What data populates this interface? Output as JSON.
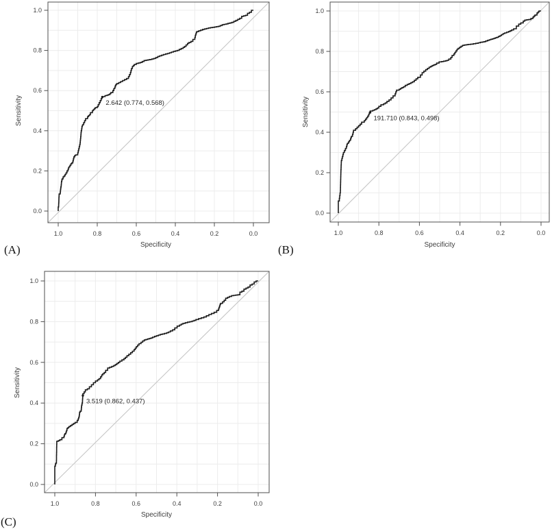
{
  "figure": {
    "background": "#ffffff",
    "colors": {
      "curve": "#1a1a1a",
      "diagonal": "#c6c6c6",
      "grid": "#ececec",
      "frame": "#4d4d4d",
      "tick": "#4d4d4d",
      "tick_label": "#3d3d3d",
      "axis_label": "#3d3d3d",
      "annotation": "#262626",
      "panel_letter": "#141414"
    }
  },
  "chart_data": [
    {
      "type": "line",
      "subtype": "roc_curve",
      "panel": "(A)",
      "xlabel": "Specificity",
      "ylabel": "Sensitivity",
      "x_axis": {
        "range": [
          1.0,
          0.0
        ],
        "reversed": true,
        "ticks": [
          "1.0",
          "0.8",
          "0.6",
          "0.4",
          "0.2",
          "0.0"
        ]
      },
      "y_axis": {
        "range": [
          0.0,
          1.0
        ],
        "ticks": [
          "0.0",
          "0.2",
          "0.4",
          "0.6",
          "0.8",
          "1.0"
        ]
      },
      "grid": {
        "on": true,
        "spacing": 0.1
      },
      "reference_line": {
        "type": "diagonal",
        "from": [
          1.0,
          0.0
        ],
        "to": [
          0.0,
          1.0
        ]
      },
      "best_threshold": {
        "label": "2.642 (0.774, 0.568)",
        "threshold": 2.642,
        "specificity": 0.774,
        "sensitivity": 0.568
      },
      "points": [
        [
          1.0,
          0.0
        ],
        [
          1.0,
          0.01
        ],
        [
          0.998,
          0.02
        ],
        [
          0.997,
          0.04
        ],
        [
          0.996,
          0.06
        ],
        [
          0.995,
          0.08
        ],
        [
          0.99,
          0.085
        ],
        [
          0.988,
          0.1
        ],
        [
          0.985,
          0.12
        ],
        [
          0.983,
          0.14
        ],
        [
          0.98,
          0.155
        ],
        [
          0.975,
          0.16
        ],
        [
          0.97,
          0.17
        ],
        [
          0.965,
          0.175
        ],
        [
          0.955,
          0.19
        ],
        [
          0.95,
          0.2
        ],
        [
          0.945,
          0.215
        ],
        [
          0.94,
          0.22
        ],
        [
          0.93,
          0.235
        ],
        [
          0.925,
          0.24
        ],
        [
          0.92,
          0.26
        ],
        [
          0.915,
          0.27
        ],
        [
          0.91,
          0.277
        ],
        [
          0.9,
          0.28
        ],
        [
          0.895,
          0.3
        ],
        [
          0.89,
          0.32
        ],
        [
          0.888,
          0.33
        ],
        [
          0.886,
          0.35
        ],
        [
          0.884,
          0.37
        ],
        [
          0.882,
          0.39
        ],
        [
          0.88,
          0.4
        ],
        [
          0.877,
          0.42
        ],
        [
          0.875,
          0.425
        ],
        [
          0.87,
          0.43
        ],
        [
          0.865,
          0.44
        ],
        [
          0.86,
          0.45
        ],
        [
          0.85,
          0.46
        ],
        [
          0.845,
          0.47
        ],
        [
          0.84,
          0.475
        ],
        [
          0.835,
          0.48
        ],
        [
          0.825,
          0.49
        ],
        [
          0.82,
          0.5
        ],
        [
          0.815,
          0.505
        ],
        [
          0.81,
          0.51
        ],
        [
          0.8,
          0.515
        ],
        [
          0.795,
          0.52
        ],
        [
          0.79,
          0.53
        ],
        [
          0.785,
          0.54
        ],
        [
          0.78,
          0.55
        ],
        [
          0.776,
          0.56
        ],
        [
          0.774,
          0.568
        ],
        [
          0.76,
          0.57
        ],
        [
          0.75,
          0.575
        ],
        [
          0.735,
          0.58
        ],
        [
          0.73,
          0.585
        ],
        [
          0.72,
          0.59
        ],
        [
          0.715,
          0.6
        ],
        [
          0.71,
          0.61
        ],
        [
          0.705,
          0.625
        ],
        [
          0.7,
          0.63
        ],
        [
          0.69,
          0.635
        ],
        [
          0.68,
          0.64
        ],
        [
          0.67,
          0.645
        ],
        [
          0.66,
          0.65
        ],
        [
          0.65,
          0.655
        ],
        [
          0.64,
          0.66
        ],
        [
          0.635,
          0.67
        ],
        [
          0.63,
          0.68
        ],
        [
          0.625,
          0.7
        ],
        [
          0.62,
          0.71
        ],
        [
          0.615,
          0.72
        ],
        [
          0.61,
          0.725
        ],
        [
          0.6,
          0.73
        ],
        [
          0.59,
          0.735
        ],
        [
          0.57,
          0.74
        ],
        [
          0.55,
          0.75
        ],
        [
          0.52,
          0.755
        ],
        [
          0.5,
          0.76
        ],
        [
          0.48,
          0.77
        ],
        [
          0.45,
          0.78
        ],
        [
          0.43,
          0.785
        ],
        [
          0.4,
          0.795
        ],
        [
          0.38,
          0.8
        ],
        [
          0.36,
          0.81
        ],
        [
          0.345,
          0.82
        ],
        [
          0.33,
          0.835
        ],
        [
          0.32,
          0.84
        ],
        [
          0.31,
          0.845
        ],
        [
          0.3,
          0.855
        ],
        [
          0.295,
          0.875
        ],
        [
          0.29,
          0.89
        ],
        [
          0.27,
          0.898
        ],
        [
          0.25,
          0.905
        ],
        [
          0.22,
          0.912
        ],
        [
          0.2,
          0.915
        ],
        [
          0.17,
          0.92
        ],
        [
          0.15,
          0.928
        ],
        [
          0.13,
          0.932
        ],
        [
          0.1,
          0.94
        ],
        [
          0.08,
          0.95
        ],
        [
          0.06,
          0.96
        ],
        [
          0.05,
          0.97
        ],
        [
          0.03,
          0.975
        ],
        [
          0.02,
          0.985
        ],
        [
          0.01,
          0.99
        ],
        [
          0.0,
          1.0
        ]
      ]
    },
    {
      "type": "line",
      "subtype": "roc_curve",
      "panel": "(B)",
      "xlabel": "Specificity",
      "ylabel": "Sensitivity",
      "x_axis": {
        "range": [
          1.0,
          0.0
        ],
        "reversed": true,
        "ticks": [
          "1.0",
          "0.8",
          "0.6",
          "0.4",
          "0.2",
          "0.0"
        ]
      },
      "y_axis": {
        "range": [
          0.0,
          1.0
        ],
        "ticks": [
          "0.0",
          "0.2",
          "0.4",
          "0.6",
          "0.8",
          "1.0"
        ]
      },
      "grid": {
        "on": true,
        "spacing": 0.1
      },
      "reference_line": {
        "type": "diagonal",
        "from": [
          1.0,
          0.0
        ],
        "to": [
          0.0,
          1.0
        ]
      },
      "best_threshold": {
        "label": "191.710 (0.843, 0.498)",
        "threshold": 191.71,
        "specificity": 0.843,
        "sensitivity": 0.498
      },
      "points": [
        [
          1.0,
          0.0
        ],
        [
          1.0,
          0.05
        ],
        [
          0.995,
          0.06
        ],
        [
          0.99,
          0.1
        ],
        [
          0.988,
          0.18
        ],
        [
          0.985,
          0.25
        ],
        [
          0.98,
          0.27
        ],
        [
          0.975,
          0.29
        ],
        [
          0.97,
          0.3
        ],
        [
          0.96,
          0.32
        ],
        [
          0.955,
          0.34
        ],
        [
          0.95,
          0.345
        ],
        [
          0.94,
          0.36
        ],
        [
          0.935,
          0.375
        ],
        [
          0.93,
          0.38
        ],
        [
          0.925,
          0.4
        ],
        [
          0.915,
          0.41
        ],
        [
          0.9,
          0.425
        ],
        [
          0.885,
          0.44
        ],
        [
          0.872,
          0.45
        ],
        [
          0.86,
          0.465
        ],
        [
          0.85,
          0.48
        ],
        [
          0.843,
          0.498
        ],
        [
          0.83,
          0.505
        ],
        [
          0.814,
          0.512
        ],
        [
          0.8,
          0.52
        ],
        [
          0.79,
          0.528
        ],
        [
          0.777,
          0.536
        ],
        [
          0.76,
          0.545
        ],
        [
          0.75,
          0.553
        ],
        [
          0.74,
          0.56
        ],
        [
          0.73,
          0.57
        ],
        [
          0.72,
          0.58
        ],
        [
          0.713,
          0.6
        ],
        [
          0.7,
          0.608
        ],
        [
          0.686,
          0.617
        ],
        [
          0.67,
          0.625
        ],
        [
          0.66,
          0.632
        ],
        [
          0.642,
          0.641
        ],
        [
          0.625,
          0.65
        ],
        [
          0.608,
          0.664
        ],
        [
          0.595,
          0.672
        ],
        [
          0.578,
          0.695
        ],
        [
          0.56,
          0.71
        ],
        [
          0.544,
          0.722
        ],
        [
          0.53,
          0.73
        ],
        [
          0.515,
          0.736
        ],
        [
          0.503,
          0.742
        ],
        [
          0.49,
          0.748
        ],
        [
          0.47,
          0.752
        ],
        [
          0.455,
          0.756
        ],
        [
          0.445,
          0.762
        ],
        [
          0.439,
          0.77
        ],
        [
          0.43,
          0.78
        ],
        [
          0.42,
          0.795
        ],
        [
          0.409,
          0.81
        ],
        [
          0.395,
          0.82
        ],
        [
          0.379,
          0.83
        ],
        [
          0.36,
          0.833
        ],
        [
          0.334,
          0.836
        ],
        [
          0.31,
          0.84
        ],
        [
          0.29,
          0.845
        ],
        [
          0.273,
          0.848
        ],
        [
          0.255,
          0.855
        ],
        [
          0.24,
          0.86
        ],
        [
          0.226,
          0.864
        ],
        [
          0.21,
          0.87
        ],
        [
          0.195,
          0.878
        ],
        [
          0.179,
          0.888
        ],
        [
          0.16,
          0.895
        ],
        [
          0.145,
          0.902
        ],
        [
          0.135,
          0.906
        ],
        [
          0.122,
          0.912
        ],
        [
          0.11,
          0.925
        ],
        [
          0.1,
          0.935
        ],
        [
          0.088,
          0.941
        ],
        [
          0.08,
          0.95
        ],
        [
          0.07,
          0.955
        ],
        [
          0.05,
          0.958
        ],
        [
          0.04,
          0.963
        ],
        [
          0.035,
          0.97
        ],
        [
          0.03,
          0.975
        ],
        [
          0.02,
          0.98
        ],
        [
          0.015,
          0.99
        ],
        [
          0.01,
          0.995
        ],
        [
          0.0,
          1.0
        ]
      ]
    },
    {
      "type": "line",
      "subtype": "roc_curve",
      "panel": "(C)",
      "xlabel": "Specificity",
      "ylabel": "Sensitivity",
      "x_axis": {
        "range": [
          1.0,
          0.0
        ],
        "reversed": true,
        "ticks": [
          "1.0",
          "0.8",
          "0.6",
          "0.4",
          "0.2",
          "0.0"
        ]
      },
      "y_axis": {
        "range": [
          0.0,
          1.0
        ],
        "ticks": [
          "0.0",
          "0.2",
          "0.4",
          "0.6",
          "0.8",
          "1.0"
        ]
      },
      "grid": {
        "on": true,
        "spacing": 0.1
      },
      "reference_line": {
        "type": "diagonal",
        "from": [
          1.0,
          0.0
        ],
        "to": [
          0.0,
          1.0
        ]
      },
      "best_threshold": {
        "label": "3.519 (0.862, 0.437)",
        "threshold": 3.519,
        "specificity": 0.862,
        "sensitivity": 0.437
      },
      "points": [
        [
          1.0,
          0.0
        ],
        [
          1.0,
          0.085
        ],
        [
          0.997,
          0.09
        ],
        [
          0.995,
          0.1
        ],
        [
          0.992,
          0.105
        ],
        [
          0.99,
          0.21
        ],
        [
          0.975,
          0.215
        ],
        [
          0.965,
          0.22
        ],
        [
          0.955,
          0.23
        ],
        [
          0.95,
          0.245
        ],
        [
          0.945,
          0.25
        ],
        [
          0.94,
          0.265
        ],
        [
          0.935,
          0.275
        ],
        [
          0.93,
          0.28
        ],
        [
          0.915,
          0.29
        ],
        [
          0.9,
          0.3
        ],
        [
          0.89,
          0.305
        ],
        [
          0.885,
          0.315
        ],
        [
          0.88,
          0.33
        ],
        [
          0.878,
          0.345
        ],
        [
          0.875,
          0.355
        ],
        [
          0.87,
          0.36
        ],
        [
          0.868,
          0.38
        ],
        [
          0.866,
          0.39
        ],
        [
          0.864,
          0.4
        ],
        [
          0.863,
          0.42
        ],
        [
          0.862,
          0.437
        ],
        [
          0.85,
          0.455
        ],
        [
          0.84,
          0.465
        ],
        [
          0.83,
          0.47
        ],
        [
          0.82,
          0.48
        ],
        [
          0.81,
          0.49
        ],
        [
          0.8,
          0.5
        ],
        [
          0.79,
          0.508
        ],
        [
          0.775,
          0.52
        ],
        [
          0.764,
          0.538
        ],
        [
          0.75,
          0.55
        ],
        [
          0.73,
          0.572
        ],
        [
          0.71,
          0.58
        ],
        [
          0.695,
          0.589
        ],
        [
          0.68,
          0.6
        ],
        [
          0.66,
          0.612
        ],
        [
          0.645,
          0.625
        ],
        [
          0.627,
          0.64
        ],
        [
          0.61,
          0.655
        ],
        [
          0.599,
          0.67
        ],
        [
          0.586,
          0.685
        ],
        [
          0.576,
          0.692
        ],
        [
          0.56,
          0.705
        ],
        [
          0.552,
          0.71
        ],
        [
          0.535,
          0.715
        ],
        [
          0.519,
          0.72
        ],
        [
          0.5,
          0.728
        ],
        [
          0.472,
          0.737
        ],
        [
          0.45,
          0.742
        ],
        [
          0.432,
          0.749
        ],
        [
          0.41,
          0.76
        ],
        [
          0.387,
          0.778
        ],
        [
          0.37,
          0.788
        ],
        [
          0.347,
          0.795
        ],
        [
          0.325,
          0.8
        ],
        [
          0.306,
          0.806
        ],
        [
          0.28,
          0.815
        ],
        [
          0.255,
          0.823
        ],
        [
          0.23,
          0.835
        ],
        [
          0.204,
          0.846
        ],
        [
          0.195,
          0.855
        ],
        [
          0.19,
          0.87
        ],
        [
          0.185,
          0.885
        ],
        [
          0.175,
          0.89
        ],
        [
          0.16,
          0.905
        ],
        [
          0.15,
          0.915
        ],
        [
          0.141,
          0.92
        ],
        [
          0.12,
          0.928
        ],
        [
          0.09,
          0.932
        ],
        [
          0.08,
          0.945
        ],
        [
          0.07,
          0.95
        ],
        [
          0.06,
          0.96
        ],
        [
          0.05,
          0.965
        ],
        [
          0.04,
          0.97
        ],
        [
          0.03,
          0.98
        ],
        [
          0.02,
          0.985
        ],
        [
          0.01,
          0.995
        ],
        [
          0.0,
          1.0
        ]
      ]
    }
  ]
}
